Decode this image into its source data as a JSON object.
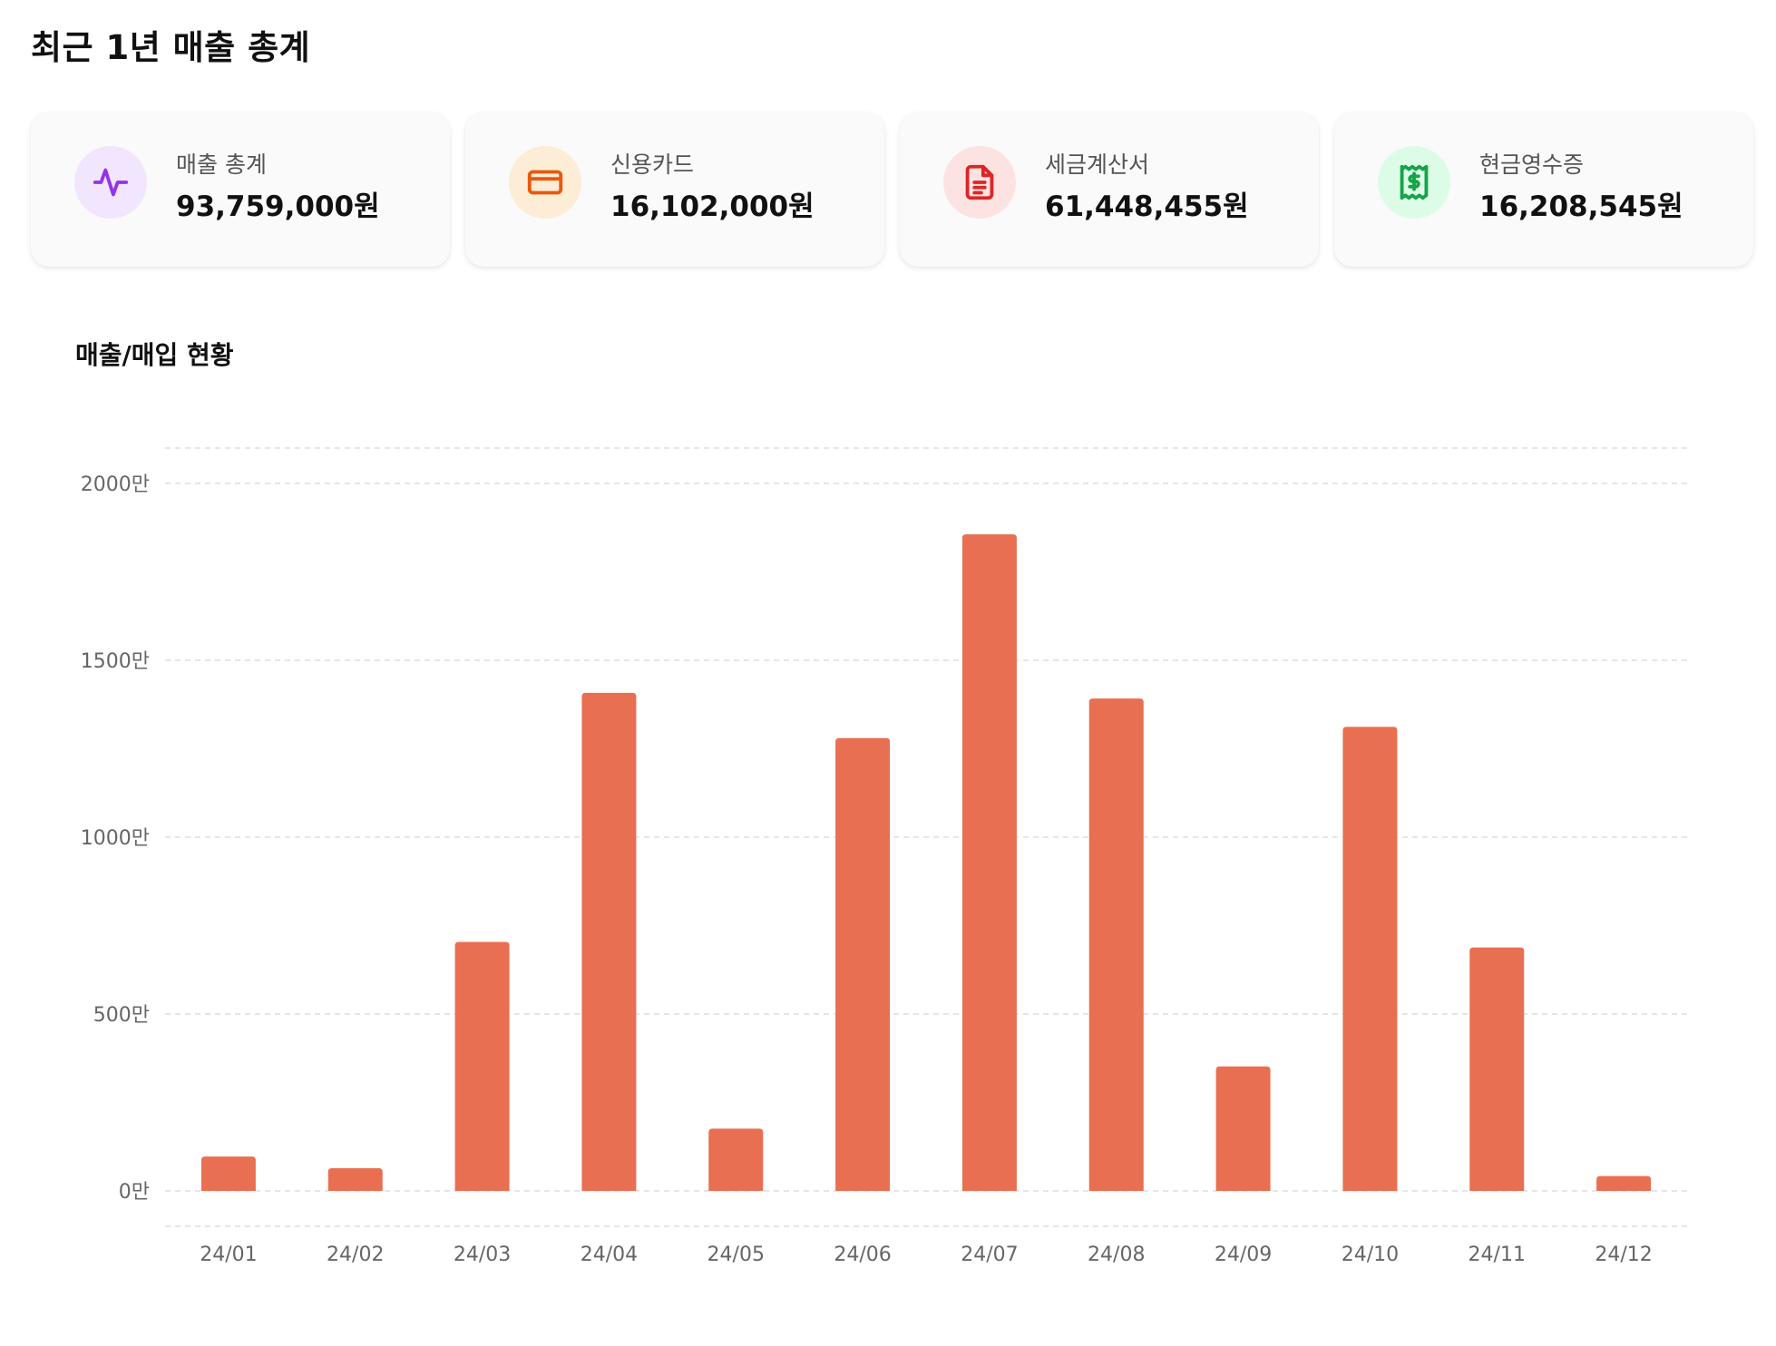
{
  "page_title": "최근 1년 매출 총계",
  "cards": [
    {
      "label": "매출 총계",
      "value": "93,759,000원",
      "icon": "activity-pulse-icon",
      "bg": "#f1e6fd",
      "fg": "#9333ea"
    },
    {
      "label": "신용카드",
      "value": "16,102,000원",
      "icon": "credit-card-icon",
      "bg": "#fdecd6",
      "fg": "#ea580c"
    },
    {
      "label": "세금계산서",
      "value": "61,448,455원",
      "icon": "document-icon",
      "bg": "#fde2e2",
      "fg": "#dc2626"
    },
    {
      "label": "현금영수증",
      "value": "16,208,545원",
      "icon": "receipt-icon",
      "bg": "#dcfce7",
      "fg": "#16a34a"
    }
  ],
  "chart_data": {
    "type": "bar",
    "title": "매출/매입 현황",
    "categories": [
      "24/01",
      "24/02",
      "24/03",
      "24/04",
      "24/05",
      "24/06",
      "24/07",
      "24/08",
      "24/09",
      "24/10",
      "24/11",
      "24/12"
    ],
    "values": [
      97,
      64,
      704,
      1408,
      176,
      1280,
      1856,
      1392,
      352,
      1312,
      688,
      42
    ],
    "unit": "만",
    "y_ticks": [
      "0만",
      "500만",
      "1000만",
      "1500만",
      "2000만"
    ],
    "ylim": [
      -100,
      2100
    ],
    "grid": true,
    "color": "#e86f51"
  }
}
